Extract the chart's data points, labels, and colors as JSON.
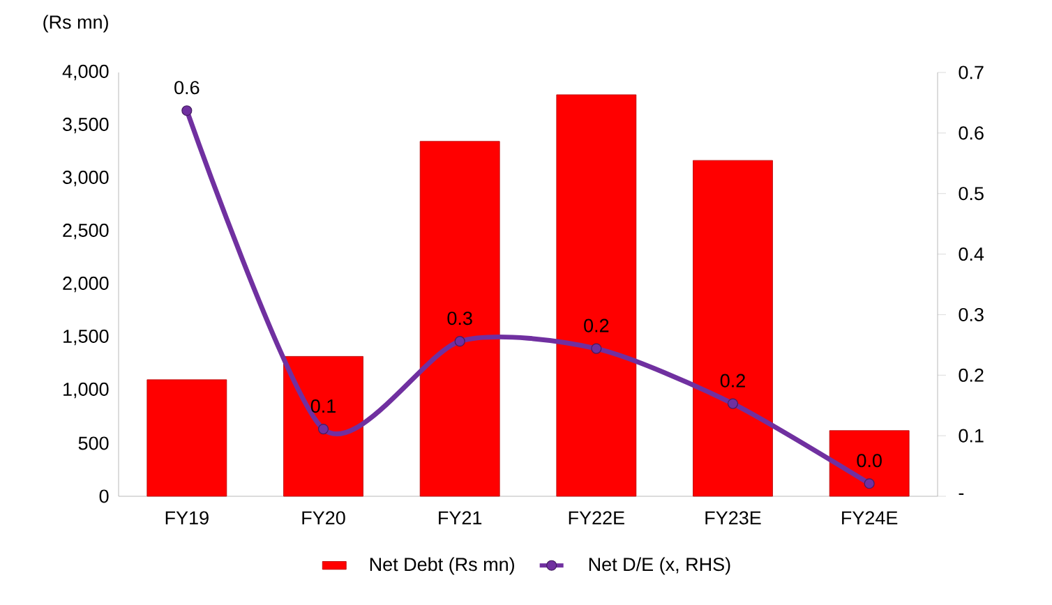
{
  "chart_data": {
    "type": "bar",
    "ylabel": "(Rs mn)",
    "categories": [
      "FY19",
      "FY20",
      "FY21",
      "FY22E",
      "FY23E",
      "FY24E"
    ],
    "series": [
      {
        "name": "Net Debt (Rs mn)",
        "color": "#ff0000",
        "values": [
          1100,
          1320,
          3350,
          3790,
          3170,
          620
        ]
      },
      {
        "name": "Net D/E (x, RHS)",
        "type": "line",
        "axis": "y2",
        "color": "#7030a0",
        "marker": "circle",
        "values": [
          0.637,
          0.111,
          0.256,
          0.244,
          0.153,
          0.021
        ],
        "value_labels": [
          "0.6",
          "0.1",
          "0.3",
          "0.2",
          "0.2",
          "0.0"
        ]
      }
    ],
    "ylim": [
      0,
      4000
    ],
    "yticks": [
      0,
      500,
      {
        "value": 1000,
        "label": "1,000"
      },
      {
        "value": 1500,
        "label": "1,500"
      },
      {
        "value": 2000,
        "label": "2,000"
      },
      {
        "value": 2500,
        "label": "2,500"
      },
      {
        "value": 3000,
        "label": "3,000"
      },
      {
        "value": 3500,
        "label": "3,500"
      },
      {
        "value": 4000,
        "label": "4,000"
      }
    ],
    "y2lim": [
      0,
      0.7
    ],
    "y2ticks": [
      {
        "value": 0,
        "label": "-"
      },
      0.1,
      0.2,
      0.3,
      0.4,
      0.5,
      0.6,
      0.7
    ],
    "legend": "bottom",
    "grid": false
  }
}
